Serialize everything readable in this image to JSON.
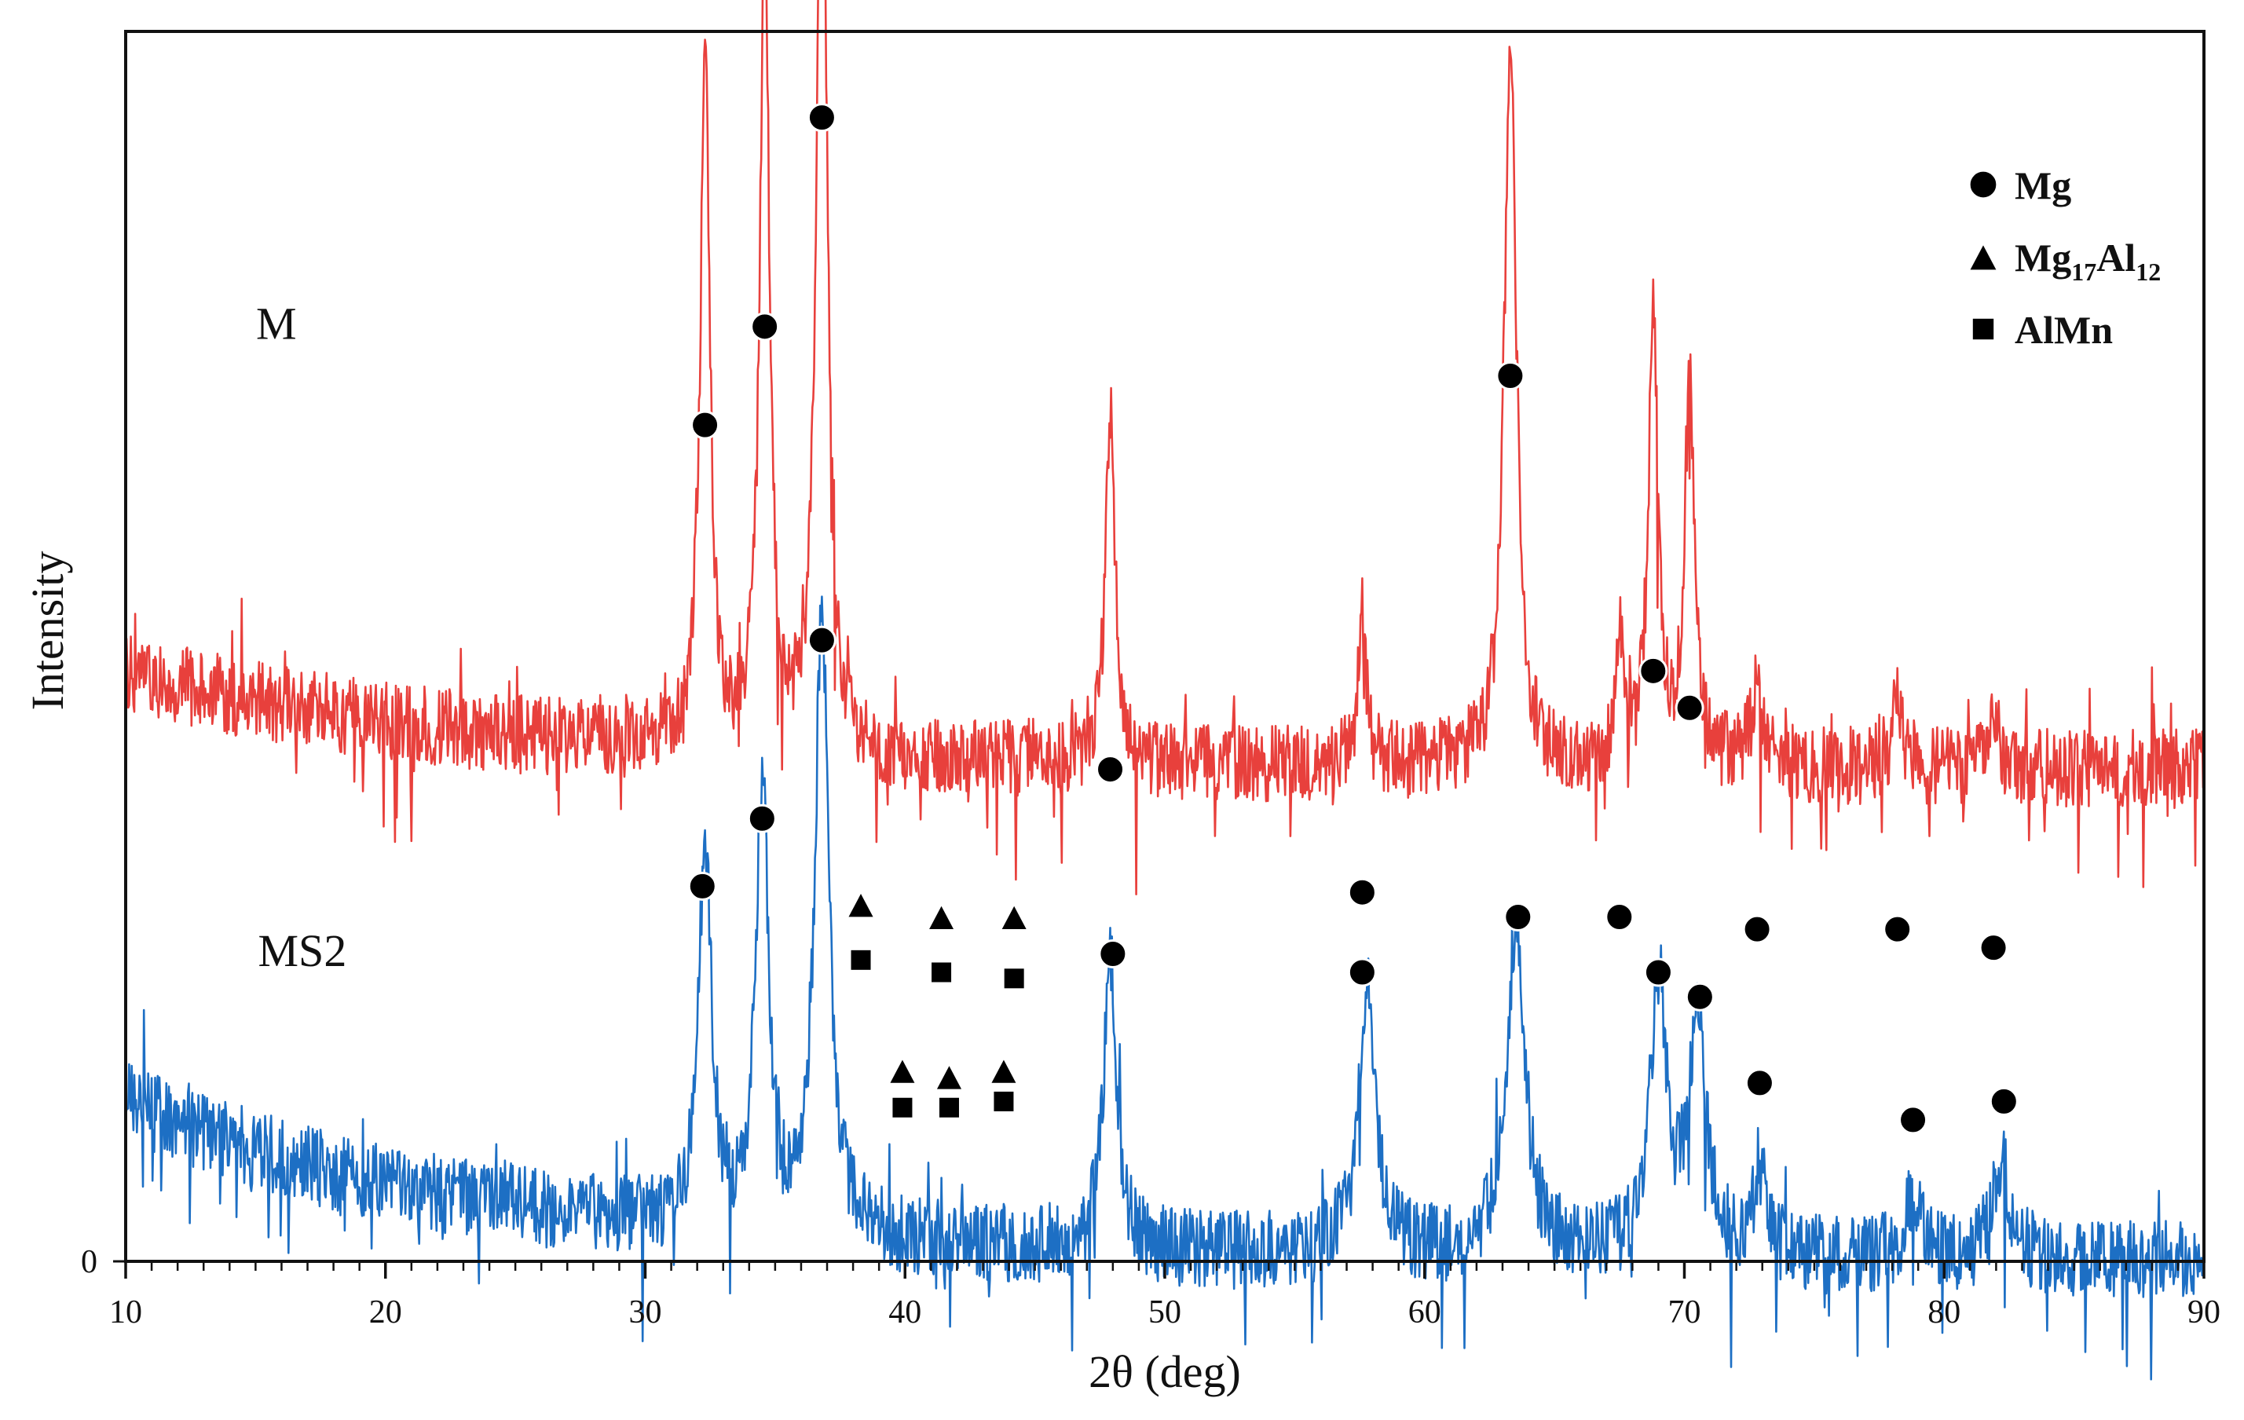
{
  "chart_data": {
    "type": "line",
    "title": "",
    "xlabel": "2θ (deg)",
    "ylabel": "Intensity",
    "xlim": [
      10,
      90
    ],
    "x_ticks": [
      10,
      20,
      30,
      40,
      50,
      60,
      70,
      80,
      90
    ],
    "y_ticks": [
      0
    ],
    "grid": false,
    "legend_position": "top-right",
    "legend": [
      {
        "marker": "circle",
        "label": "Mg"
      },
      {
        "marker": "triangle",
        "label": "Mg",
        "sub1": "17",
        "mid": "Al",
        "sub2": "12"
      },
      {
        "marker": "square",
        "label": "AlMn"
      }
    ],
    "series": [
      {
        "name": "M",
        "color": "#e8403c",
        "baseline": 40,
        "noise": 4,
        "start_offset": 8,
        "peaks": [
          {
            "x": 32.3,
            "height": 57,
            "width": 0.22,
            "phase": "Mg"
          },
          {
            "x": 34.6,
            "height": 66,
            "width": 0.22,
            "phase": "Mg"
          },
          {
            "x": 36.8,
            "height": 84,
            "width": 0.24,
            "phase": "Mg"
          },
          {
            "x": 47.9,
            "height": 29,
            "width": 0.22,
            "phase": "Mg"
          },
          {
            "x": 57.6,
            "height": 12,
            "width": 0.18,
            "phase": "Mg"
          },
          {
            "x": 63.3,
            "height": 60,
            "width": 0.28,
            "phase": "Mg"
          },
          {
            "x": 67.5,
            "height": 10,
            "width": 0.18,
            "phase": "Mg"
          },
          {
            "x": 68.8,
            "height": 37,
            "width": 0.22,
            "phase": "Mg"
          },
          {
            "x": 70.2,
            "height": 33,
            "width": 0.22,
            "phase": "Mg"
          },
          {
            "x": 72.8,
            "height": 6,
            "width": 0.3,
            "phase": "Mg"
          },
          {
            "x": 78.2,
            "height": 5,
            "width": 0.25,
            "phase": "Mg"
          },
          {
            "x": 81.9,
            "height": 4,
            "width": 0.25,
            "phase": "Mg"
          }
        ],
        "marker_points": [
          {
            "x": 32.3,
            "y": 68,
            "marker": "circle"
          },
          {
            "x": 34.6,
            "y": 76,
            "marker": "circle"
          },
          {
            "x": 36.8,
            "y": 93,
            "marker": "circle"
          },
          {
            "x": 47.9,
            "y": 40,
            "marker": "circle"
          },
          {
            "x": 57.6,
            "y": 30,
            "marker": "circle"
          },
          {
            "x": 63.3,
            "y": 72,
            "marker": "circle"
          },
          {
            "x": 67.5,
            "y": 28,
            "marker": "circle"
          },
          {
            "x": 68.8,
            "y": 48,
            "marker": "circle"
          },
          {
            "x": 70.2,
            "y": 45,
            "marker": "circle"
          },
          {
            "x": 72.8,
            "y": 27,
            "marker": "circle"
          },
          {
            "x": 78.2,
            "y": 27,
            "marker": "circle"
          },
          {
            "x": 81.9,
            "y": 25.5,
            "marker": "circle"
          },
          {
            "x": 38.3,
            "y": 29,
            "marker": "triangle"
          },
          {
            "x": 38.3,
            "y": 24.5,
            "marker": "square"
          },
          {
            "x": 41.4,
            "y": 28,
            "marker": "triangle"
          },
          {
            "x": 41.4,
            "y": 23.5,
            "marker": "square"
          },
          {
            "x": 44.2,
            "y": 28,
            "marker": "triangle"
          },
          {
            "x": 44.2,
            "y": 23,
            "marker": "square"
          }
        ]
      },
      {
        "name": "MS2",
        "color": "#1d6fc4",
        "baseline": 0,
        "noise": 4,
        "start_offset": 13,
        "peaks": [
          {
            "x": 32.3,
            "height": 31,
            "width": 0.3,
            "phase": "Mg"
          },
          {
            "x": 34.5,
            "height": 36,
            "width": 0.3,
            "phase": "Mg"
          },
          {
            "x": 36.8,
            "height": 50,
            "width": 0.33,
            "phase": "Mg"
          },
          {
            "x": 47.9,
            "height": 24,
            "width": 0.3,
            "phase": "Mg"
          },
          {
            "x": 57.8,
            "height": 22,
            "width": 0.4,
            "phase": "Mg"
          },
          {
            "x": 63.5,
            "height": 26,
            "width": 0.45,
            "phase": "Mg"
          },
          {
            "x": 69.0,
            "height": 22,
            "width": 0.4,
            "phase": "Mg"
          },
          {
            "x": 70.5,
            "height": 19,
            "width": 0.4,
            "phase": "Mg"
          },
          {
            "x": 72.9,
            "height": 7,
            "width": 0.3,
            "phase": "Mg"
          },
          {
            "x": 78.8,
            "height": 5,
            "width": 0.35,
            "phase": "Mg"
          },
          {
            "x": 82.2,
            "height": 8,
            "width": 0.4,
            "phase": "Mg"
          }
        ],
        "marker_points": [
          {
            "x": 32.2,
            "y": 30.5,
            "marker": "circle"
          },
          {
            "x": 34.5,
            "y": 36,
            "marker": "circle"
          },
          {
            "x": 36.8,
            "y": 50.5,
            "marker": "circle"
          },
          {
            "x": 48.0,
            "y": 25,
            "marker": "circle"
          },
          {
            "x": 57.6,
            "y": 23.5,
            "marker": "circle"
          },
          {
            "x": 63.6,
            "y": 28,
            "marker": "circle"
          },
          {
            "x": 69.0,
            "y": 23.5,
            "marker": "circle"
          },
          {
            "x": 70.6,
            "y": 21.5,
            "marker": "circle"
          },
          {
            "x": 72.9,
            "y": 14.5,
            "marker": "circle"
          },
          {
            "x": 78.8,
            "y": 11.5,
            "marker": "circle"
          },
          {
            "x": 82.3,
            "y": 13,
            "marker": "circle"
          },
          {
            "x": 39.9,
            "y": 15.5,
            "marker": "triangle"
          },
          {
            "x": 39.9,
            "y": 12.5,
            "marker": "square"
          },
          {
            "x": 41.7,
            "y": 15,
            "marker": "triangle"
          },
          {
            "x": 41.7,
            "y": 12.5,
            "marker": "square"
          },
          {
            "x": 43.8,
            "y": 15.5,
            "marker": "triangle"
          },
          {
            "x": 43.8,
            "y": 13,
            "marker": "square"
          }
        ]
      }
    ],
    "series_labels": [
      {
        "text": "M",
        "x": 15.8,
        "y": 75
      },
      {
        "text": "MS2",
        "x": 16.8,
        "y": 24
      }
    ],
    "y_range": [
      0,
      100
    ]
  }
}
